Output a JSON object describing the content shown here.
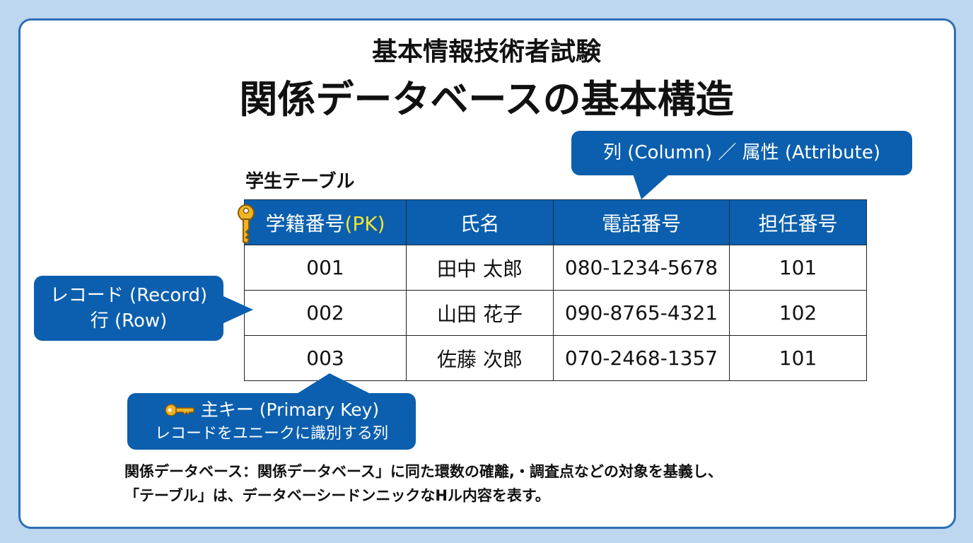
{
  "title": {
    "line1": "基本情報技術者試験",
    "line2": "関係データベースの基本構造"
  },
  "table": {
    "caption": "学生テーブル",
    "headers": [
      "学籍番号",
      "氏名",
      "電話番号",
      "担任番号"
    ],
    "pk_suffix": "(PK)",
    "rows": [
      [
        "001",
        "田中 太郎",
        "080-1234-5678",
        "101"
      ],
      [
        "002",
        "山田 花子",
        "090-8765-4321",
        "102"
      ],
      [
        "003",
        "佐藤 次郎",
        "070-2468-1357",
        "101"
      ]
    ]
  },
  "callouts": {
    "column": "列 (Column) ／ 属性 (Attribute)",
    "record_line1": "レコード (Record)",
    "record_line2": "行 (Row)",
    "pk_line1": "主キー (Primary Key)",
    "pk_line2": "レコードをユニークに識別する列"
  },
  "description": {
    "line1": "関係データベース：関係データベース」に同た環数の確離,・調査点などの対象を基義し、",
    "line2": "「テーブル」は、データベーシードンニックなHル内容を表す。"
  },
  "colors": {
    "accent": "#0b5fae",
    "background": "#bdd7ee",
    "pk_text": "#f2e332",
    "key": "#f0b429"
  },
  "icons": [
    "key-icon"
  ]
}
